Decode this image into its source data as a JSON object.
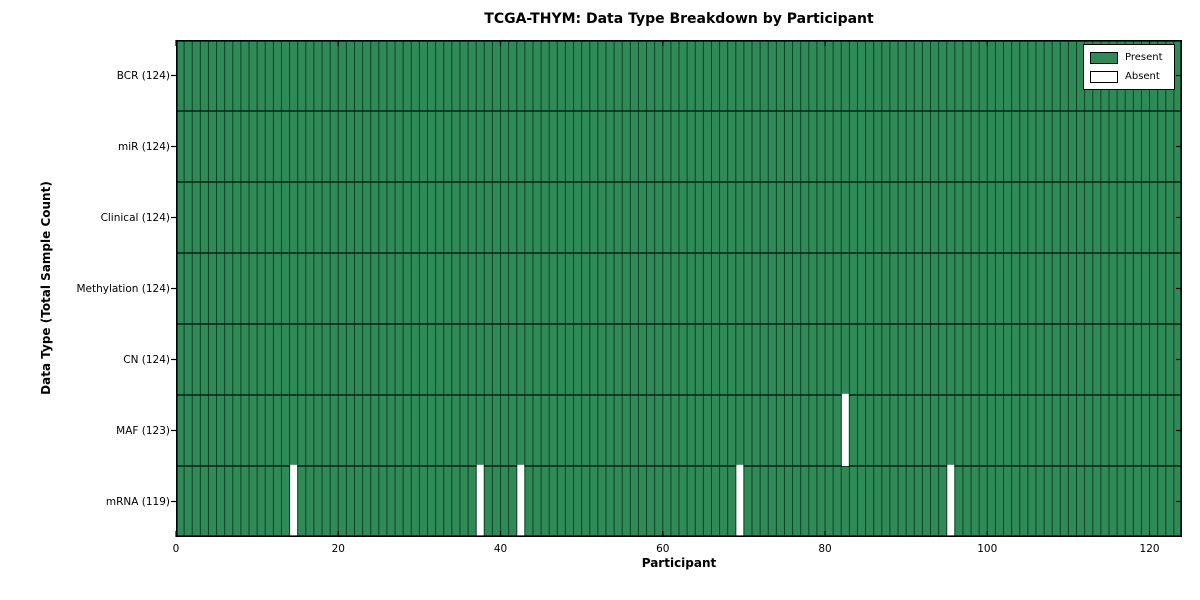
{
  "chart_data": {
    "type": "heatmap",
    "title": "TCGA-THYM: Data Type Breakdown by Participant",
    "xlabel": "Participant",
    "ylabel": "Data Type (Total Sample Count)",
    "x_ticks": [
      0,
      20,
      40,
      60,
      80,
      100,
      120
    ],
    "xlim": [
      0,
      124
    ],
    "n_participants": 124,
    "grid": false,
    "legend_position": "upper right",
    "legend": [
      {
        "label": "Present",
        "color": "#2e8b57"
      },
      {
        "label": "Absent",
        "color": "#ffffff"
      }
    ],
    "rows": [
      {
        "label": "BCR (124)",
        "data_type": "BCR",
        "total_sample_count": 124,
        "absent_participants": []
      },
      {
        "label": "miR (124)",
        "data_type": "miR",
        "total_sample_count": 124,
        "absent_participants": []
      },
      {
        "label": "Clinical (124)",
        "data_type": "Clinical",
        "total_sample_count": 124,
        "absent_participants": []
      },
      {
        "label": "Methylation (124)",
        "data_type": "Methylation",
        "total_sample_count": 124,
        "absent_participants": []
      },
      {
        "label": "CN (124)",
        "data_type": "CN",
        "total_sample_count": 124,
        "absent_participants": []
      },
      {
        "label": "MAF (123)",
        "data_type": "MAF",
        "total_sample_count": 123,
        "absent_participants": [
          82
        ]
      },
      {
        "label": "mRNA (119)",
        "data_type": "mRNA",
        "total_sample_count": 119,
        "absent_participants": [
          14,
          37,
          42,
          69,
          95
        ]
      }
    ],
    "colors": {
      "present": "#2e8b57",
      "absent": "#ffffff",
      "cell_border": "#000000",
      "row_divider": "#000000",
      "frame": "#000000"
    }
  }
}
